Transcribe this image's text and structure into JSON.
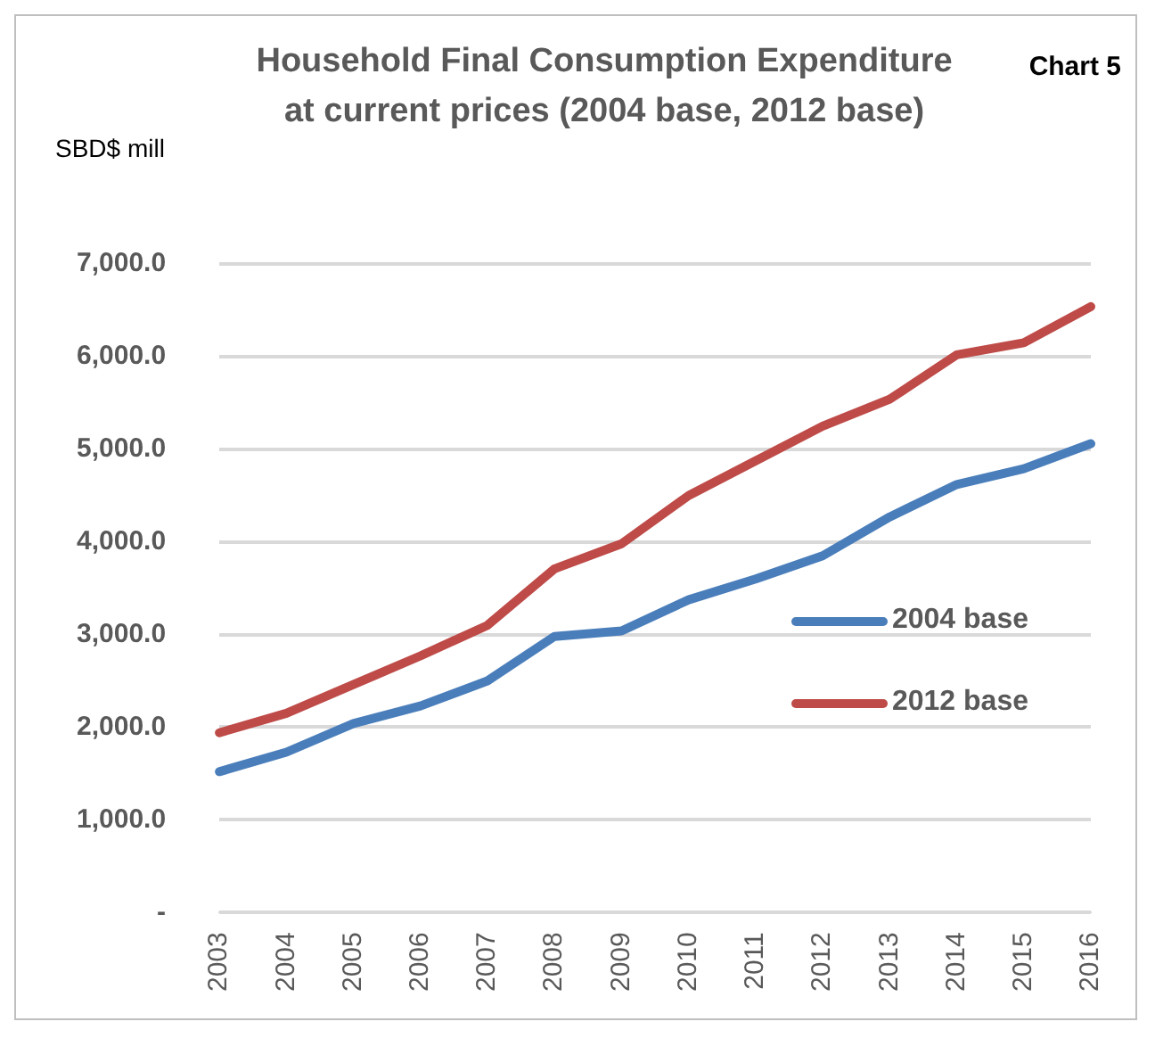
{
  "chart_data": {
    "type": "line",
    "title": "Household Final Consumption Expenditure\nat current prices (2004 base, 2012 base)",
    "ylabel": "SBD$ mill",
    "annotations": [
      "Chart 5"
    ],
    "categories": [
      "2003",
      "2004",
      "2005",
      "2006",
      "2007",
      "2008",
      "2009",
      "2010",
      "2011",
      "2012",
      "2013",
      "2014",
      "2015",
      "2016"
    ],
    "series": [
      {
        "name": "2004 base",
        "color": "#4a7ebb",
        "values": [
          1520,
          1730,
          2040,
          2230,
          2500,
          2980,
          3040,
          3375,
          3600,
          3850,
          4270,
          4620,
          4790,
          5060
        ]
      },
      {
        "name": "2012 base",
        "color": "#be4b48",
        "values": [
          1940,
          2150,
          2460,
          2770,
          3100,
          3710,
          3980,
          4500,
          4875,
          5250,
          5540,
          6020,
          6150,
          6540
        ]
      }
    ],
    "ylim": [
      0,
      7000
    ],
    "yticks": [
      {
        "value": 0,
        "label": "-"
      },
      {
        "value": 1000,
        "label": "1,000.0"
      },
      {
        "value": 2000,
        "label": "2,000.0"
      },
      {
        "value": 3000,
        "label": "3,000.0"
      },
      {
        "value": 4000,
        "label": "4,000.0"
      },
      {
        "value": 5000,
        "label": "5,000.0"
      },
      {
        "value": 6000,
        "label": "6,000.0"
      },
      {
        "value": 7000,
        "label": "7,000.0"
      }
    ],
    "grid": "y",
    "legend": "bottom right",
    "marker": "none",
    "line_style": "solid"
  }
}
